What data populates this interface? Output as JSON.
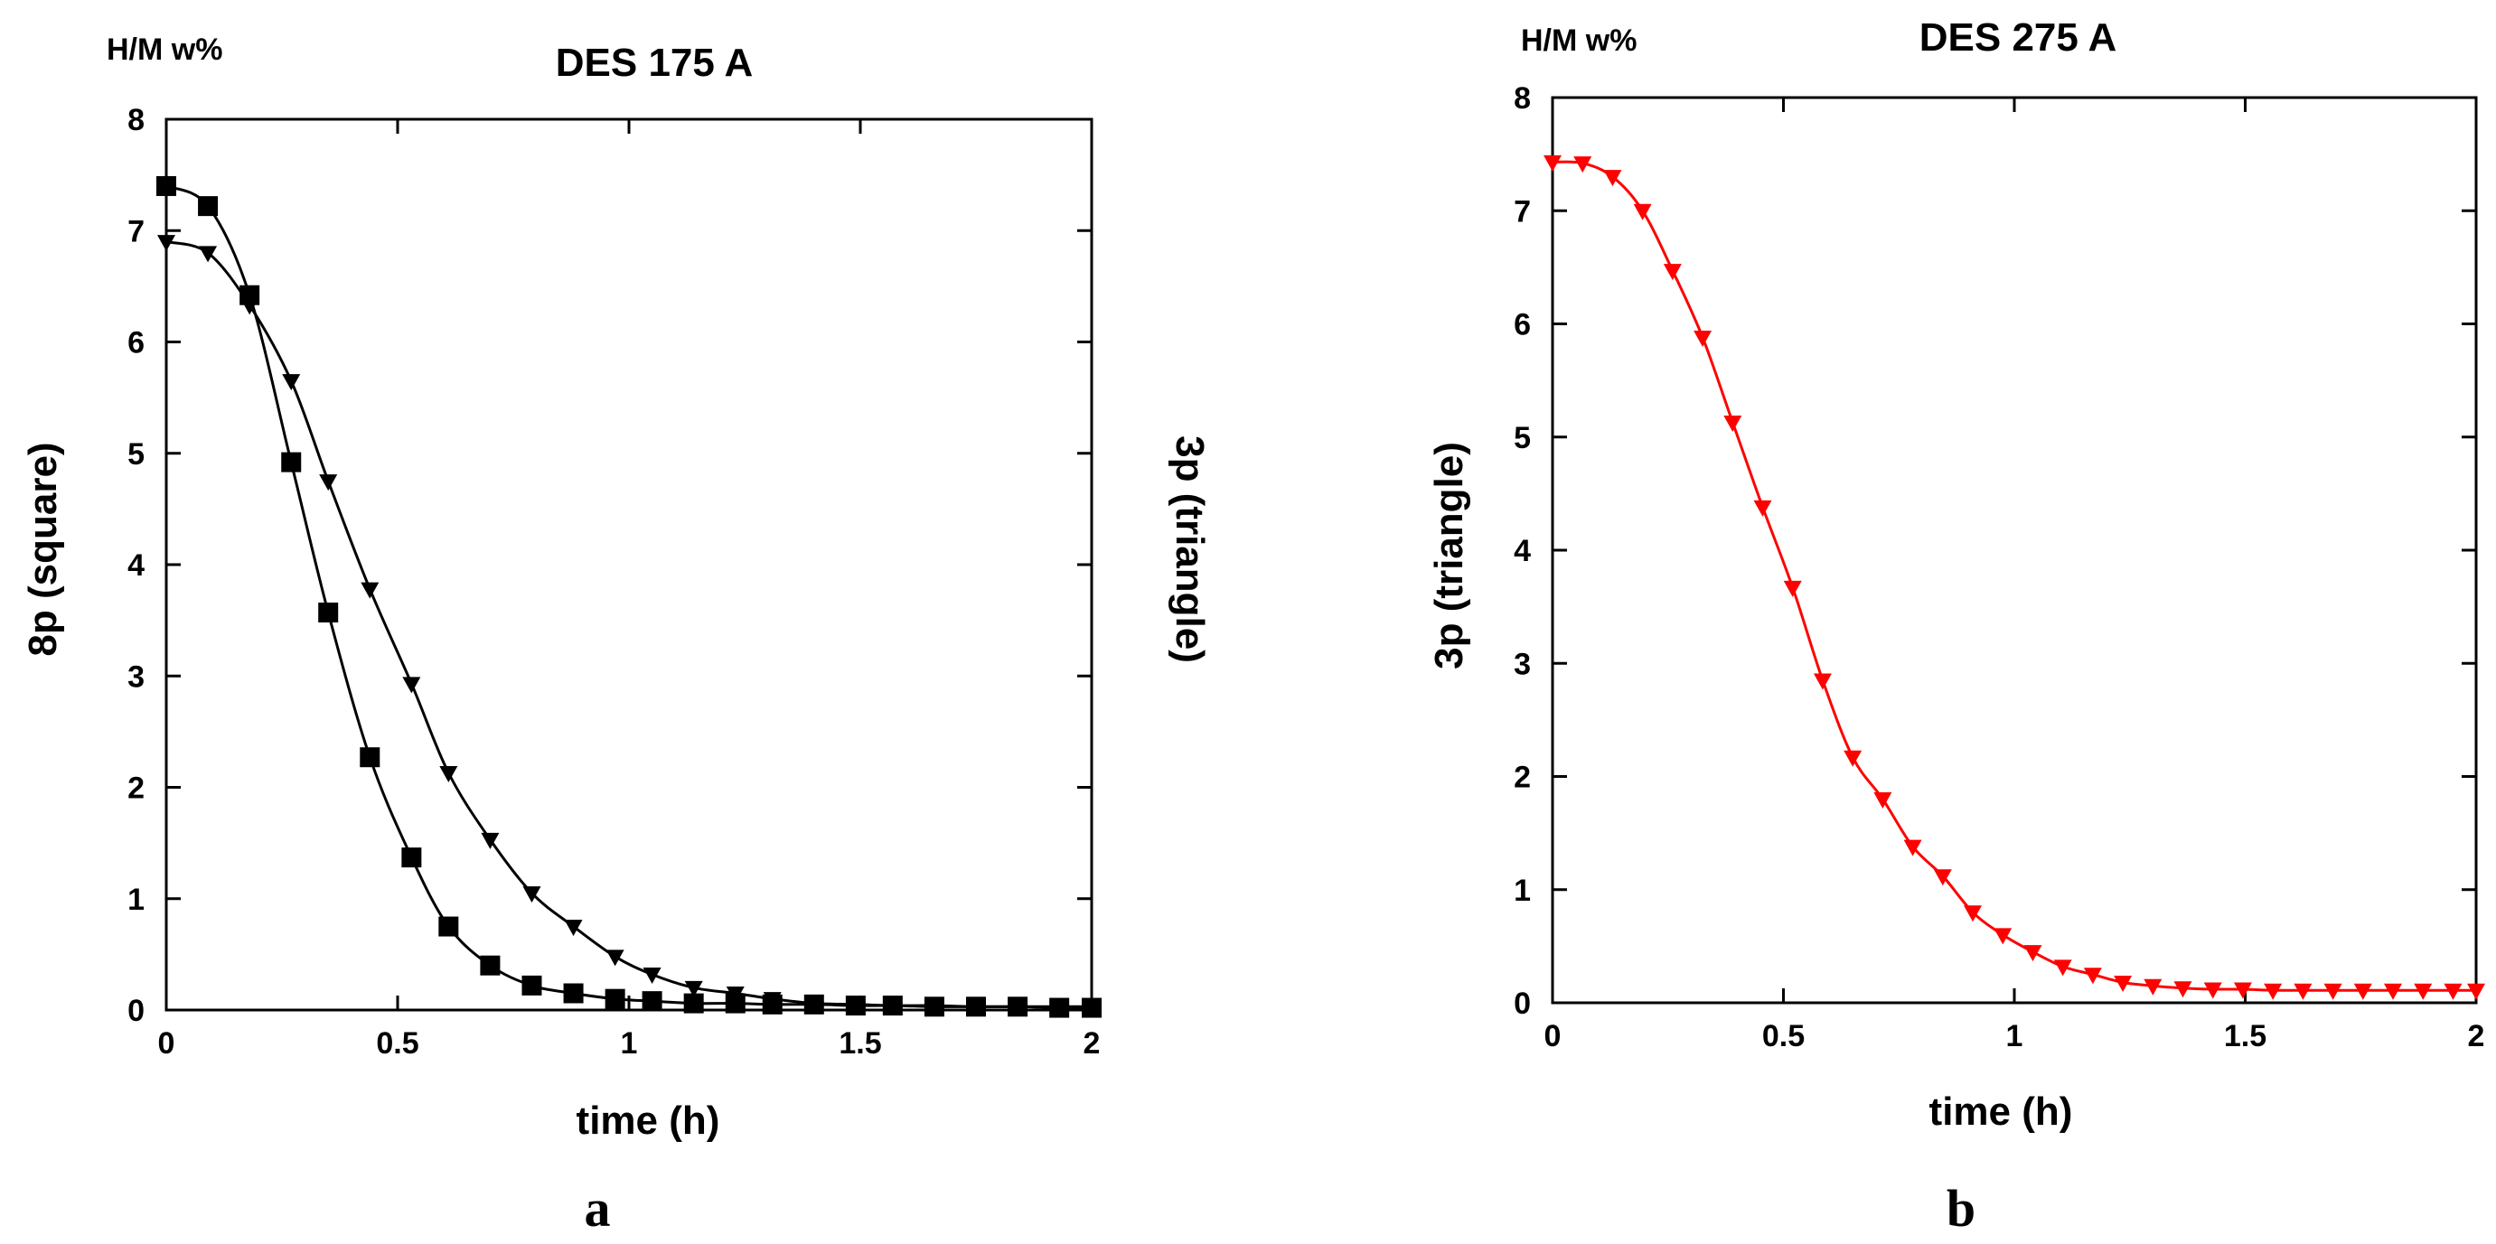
{
  "chart_data": [
    {
      "type": "line",
      "title": "DES 175 A",
      "unit_label": "H/M w%",
      "xlabel": "time (h)",
      "ylabel": "8p (square)",
      "ylabel_right": "3p (triangle)",
      "panel_label": "a",
      "xlim": [
        0,
        2
      ],
      "ylim": [
        0,
        8
      ],
      "x_ticks": [
        "0",
        "0.5",
        "1",
        "1.5",
        "2"
      ],
      "y_ticks": [
        "0",
        "1",
        "2",
        "3",
        "4",
        "5",
        "6",
        "7",
        "8"
      ],
      "series": [
        {
          "name": "8p (square)",
          "marker": "square",
          "color": "#000000",
          "x": [
            0,
            0.09,
            0.18,
            0.27,
            0.35,
            0.44,
            0.53,
            0.61,
            0.7,
            0.79,
            0.88,
            0.97,
            1.05,
            1.14,
            1.23,
            1.31,
            1.4,
            1.49,
            1.57,
            1.66,
            1.75,
            1.84,
            1.93,
            2.0
          ],
          "y": [
            7.4,
            7.22,
            6.42,
            4.92,
            3.57,
            2.27,
            1.37,
            0.75,
            0.4,
            0.22,
            0.15,
            0.1,
            0.08,
            0.06,
            0.06,
            0.05,
            0.05,
            0.04,
            0.04,
            0.03,
            0.03,
            0.03,
            0.02,
            0.02
          ]
        },
        {
          "name": "3p (triangle)",
          "marker": "triangle-down",
          "color": "#000000",
          "x": [
            0,
            0.09,
            0.18,
            0.27,
            0.35,
            0.44,
            0.53,
            0.61,
            0.7,
            0.79,
            0.88,
            0.97,
            1.05,
            1.14,
            1.23,
            1.31,
            1.4,
            1.49,
            1.57,
            1.66,
            1.75,
            1.84,
            1.93,
            2.0
          ],
          "y": [
            6.9,
            6.8,
            6.33,
            5.65,
            4.75,
            3.78,
            2.93,
            2.13,
            1.53,
            1.05,
            0.75,
            0.48,
            0.32,
            0.2,
            0.15,
            0.1,
            0.06,
            0.05,
            0.04,
            0.04,
            0.03,
            0.03,
            0.03,
            0.03
          ]
        }
      ]
    },
    {
      "type": "line",
      "title": "DES 275 A",
      "unit_label": "H/M w%",
      "xlabel": "time (h)",
      "ylabel": "3p (triangle)",
      "panel_label": "b",
      "xlim": [
        0,
        2
      ],
      "ylim": [
        0,
        8
      ],
      "x_ticks": [
        "0",
        "0.5",
        "1",
        "1.5",
        "2"
      ],
      "y_ticks": [
        "0",
        "1",
        "2",
        "3",
        "4",
        "5",
        "6",
        "7",
        "8"
      ],
      "series": [
        {
          "name": "3p (triangle)",
          "marker": "triangle-down",
          "color": "#ff0000",
          "x": [
            0,
            0.065,
            0.13,
            0.195,
            0.26,
            0.325,
            0.39,
            0.455,
            0.52,
            0.585,
            0.65,
            0.715,
            0.78,
            0.845,
            0.91,
            0.975,
            1.04,
            1.105,
            1.17,
            1.235,
            1.3,
            1.365,
            1.43,
            1.495,
            1.56,
            1.625,
            1.69,
            1.755,
            1.82,
            1.885,
            1.95,
            2.0
          ],
          "y": [
            7.43,
            7.42,
            7.3,
            7.0,
            6.47,
            5.88,
            5.13,
            4.38,
            3.67,
            2.85,
            2.17,
            1.8,
            1.38,
            1.12,
            0.8,
            0.6,
            0.45,
            0.32,
            0.25,
            0.18,
            0.15,
            0.13,
            0.12,
            0.12,
            0.11,
            0.11,
            0.11,
            0.11,
            0.11,
            0.11,
            0.11,
            0.11
          ]
        }
      ]
    }
  ]
}
